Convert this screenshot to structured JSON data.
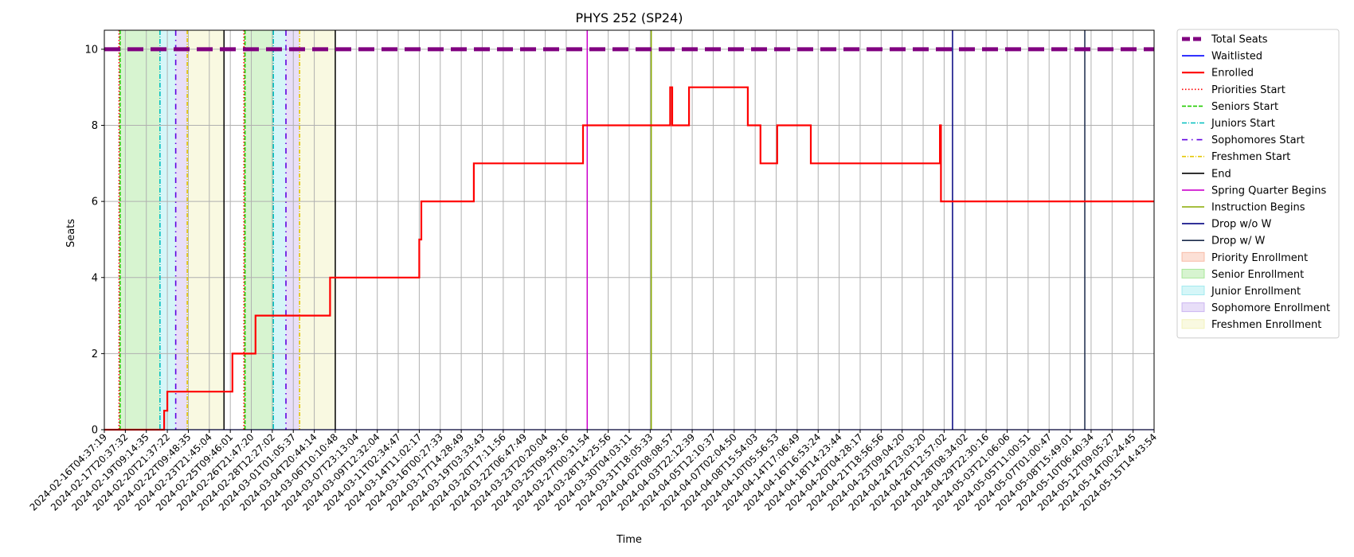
{
  "chart_data": {
    "type": "line",
    "title": "PHYS 252 (SP24)",
    "xlabel": "Time",
    "ylabel": "Seats",
    "ylim": [
      0,
      10.5
    ],
    "yticks": [
      0,
      2,
      4,
      6,
      8,
      10
    ],
    "grid": true,
    "legend_placement": "outside-right",
    "x_ticks": [
      "2024-02-16T04:37:19",
      "2024-02-17T20:37:32",
      "2024-02-19T09:14:35",
      "2024-02-20T21:37:22",
      "2024-02-22T09:48:35",
      "2024-02-23T21:45:04",
      "2024-02-25T09:46:01",
      "2024-02-26T21:47:20",
      "2024-02-28T12:27:02",
      "2024-03-01T01:05:37",
      "2024-03-04T20:44:14",
      "2024-03-06T10:10:48",
      "2024-03-07T23:13:04",
      "2024-03-09T12:32:04",
      "2024-03-11T02:34:47",
      "2024-03-14T11:02:17",
      "2024-03-16T00:27:33",
      "2024-03-17T14:28:49",
      "2024-03-19T03:33:43",
      "2024-03-20T17:11:56",
      "2024-03-22T06:47:49",
      "2024-03-23T20:20:04",
      "2024-03-25T09:59:16",
      "2024-03-27T00:31:54",
      "2024-03-28T14:25:56",
      "2024-03-30T04:03:11",
      "2024-03-31T18:05:33",
      "2024-04-02T08:08:57",
      "2024-04-03T22:12:39",
      "2024-04-05T12:10:37",
      "2024-04-07T02:04:50",
      "2024-04-08T15:54:03",
      "2024-04-10T05:56:53",
      "2024-04-14T17:06:49",
      "2024-04-16T16:53:24",
      "2024-04-18T14:23:44",
      "2024-04-20T04:28:17",
      "2024-04-21T18:56:56",
      "2024-04-23T09:04:20",
      "2024-04-24T23:03:20",
      "2024-04-26T12:57:02",
      "2024-04-28T08:34:02",
      "2024-04-29T22:30:16",
      "2024-05-03T21:06:06",
      "2024-05-05T11:00:51",
      "2024-05-07T01:00:47",
      "2024-05-08T15:49:01",
      "2024-05-10T06:40:34",
      "2024-05-12T09:05:27",
      "2024-05-14T00:24:45",
      "2024-05-15T14:43:54"
    ],
    "series": [
      {
        "name": "Total Seats",
        "color": "#800080",
        "style": "dashed-thick",
        "constant": 10
      },
      {
        "name": "Waitlisted",
        "color": "#0000ff",
        "style": "solid-thin",
        "constant": 0
      },
      {
        "name": "Enrolled",
        "color": "#ff0000",
        "style": "solid",
        "step_points": [
          [
            0,
            0
          ],
          [
            2.85,
            0
          ],
          [
            2.85,
            0.5
          ],
          [
            3.0,
            0.5
          ],
          [
            3.0,
            1
          ],
          [
            6.1,
            1
          ],
          [
            6.1,
            2
          ],
          [
            7.2,
            2
          ],
          [
            7.2,
            3
          ],
          [
            10.75,
            3
          ],
          [
            10.75,
            4
          ],
          [
            15.0,
            4
          ],
          [
            15.0,
            5
          ],
          [
            15.1,
            5
          ],
          [
            15.1,
            6
          ],
          [
            17.6,
            6
          ],
          [
            17.6,
            7
          ],
          [
            22.8,
            7
          ],
          [
            22.8,
            8
          ],
          [
            26.95,
            8
          ],
          [
            26.95,
            9
          ],
          [
            27.05,
            9
          ],
          [
            27.05,
            8
          ],
          [
            27.85,
            8
          ],
          [
            27.85,
            9
          ],
          [
            30.65,
            9
          ],
          [
            30.65,
            8
          ],
          [
            31.25,
            8
          ],
          [
            31.25,
            7
          ],
          [
            32.05,
            7
          ],
          [
            32.05,
            8
          ],
          [
            33.65,
            8
          ],
          [
            33.65,
            7
          ],
          [
            39.8,
            7
          ],
          [
            39.8,
            8
          ],
          [
            39.85,
            8
          ],
          [
            39.85,
            6
          ],
          [
            50,
            6
          ]
        ]
      }
    ],
    "vertical_lines": [
      {
        "name": "Priorities Start",
        "color": "#ff0000",
        "style": "dotted",
        "x": [
          0.7,
          6.65
        ]
      },
      {
        "name": "Seniors Start",
        "color": "#22cc00",
        "style": "dashed",
        "x": [
          0.75,
          6.7
        ]
      },
      {
        "name": "Juniors Start",
        "color": "#00bfbf",
        "style": "dashdot",
        "x": [
          2.65,
          8.05
        ]
      },
      {
        "name": "Sophomores Start",
        "color": "#6000e0",
        "style": "loose-dashdot",
        "x": [
          3.4,
          8.65
        ]
      },
      {
        "name": "Freshmen Start",
        "color": "#e5c700",
        "style": "dashdot-thin",
        "x": [
          3.95,
          9.3
        ]
      },
      {
        "name": "End",
        "color": "#000000",
        "style": "solid",
        "x": [
          5.7,
          11.0
        ]
      },
      {
        "name": "Spring Quarter Begins",
        "color": "#cc00cc",
        "style": "solid",
        "x": [
          23.0
        ]
      },
      {
        "name": "Instruction Begins",
        "color": "#88aa00",
        "style": "solid",
        "x": [
          26.05
        ]
      },
      {
        "name": "Drop w/o W",
        "color": "#000080",
        "style": "solid",
        "x": [
          40.4
        ]
      },
      {
        "name": "Drop w/ W",
        "color": "#1a2a4a",
        "style": "solid",
        "x": [
          46.7
        ]
      }
    ],
    "spans": [
      {
        "name": "Priority Enrollment",
        "color": "#f5a58a",
        "ranges": [
          [
            0.7,
            0.75
          ],
          [
            6.65,
            6.7
          ]
        ]
      },
      {
        "name": "Senior Enrollment",
        "color": "#8de078",
        "ranges": [
          [
            0.75,
            2.65
          ],
          [
            6.7,
            8.05
          ]
        ]
      },
      {
        "name": "Junior Enrollment",
        "color": "#86e4ea",
        "ranges": [
          [
            2.65,
            3.4
          ],
          [
            8.05,
            8.65
          ]
        ]
      },
      {
        "name": "Sophomore Enrollment",
        "color": "#bca0ec",
        "ranges": [
          [
            3.4,
            3.95
          ],
          [
            8.65,
            9.3
          ]
        ]
      },
      {
        "name": "Freshmen Enrollment",
        "color": "#eeeea8",
        "ranges": [
          [
            3.95,
            5.7
          ],
          [
            9.3,
            11.0
          ]
        ]
      }
    ]
  }
}
